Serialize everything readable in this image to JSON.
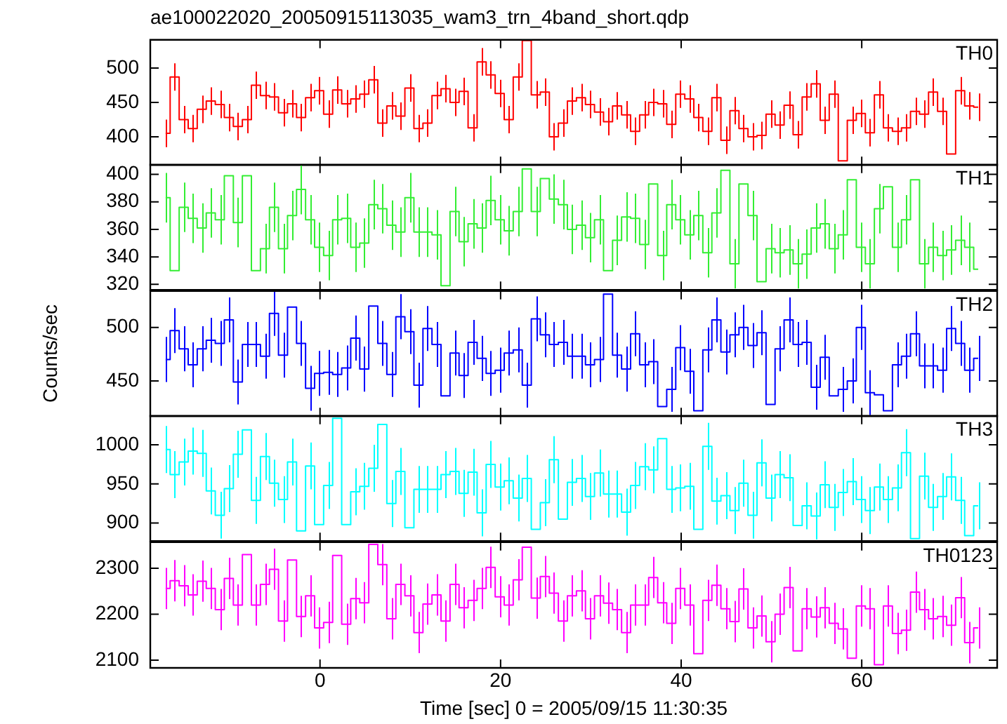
{
  "chart_data": [
    {
      "type": "step",
      "title": "ae100022020_20050915113035_wam3_trn_4band_short.qdp",
      "tick_labels": "y",
      "legend": false,
      "marker": "none",
      "x": [
        -17.1,
        -16.1,
        -15.1,
        -14.1,
        -13.1,
        -12.1,
        -11.1,
        -10.1,
        -9.1,
        -8.1,
        -7.1,
        -6.1,
        -5.1,
        -4.1,
        -3.1,
        -2.1,
        -1.1,
        -0.1,
        0.9,
        1.9,
        2.9,
        3.9,
        4.9,
        5.9,
        6.9,
        7.9,
        8.9,
        9.9,
        10.9,
        11.9,
        12.9,
        13.9,
        14.9,
        15.9,
        16.9,
        17.9,
        18.9,
        19.9,
        20.9,
        21.9,
        22.9,
        23.9,
        24.9,
        25.9,
        26.9,
        27.9,
        28.9,
        29.9,
        30.9,
        31.9,
        32.9,
        33.9,
        34.9,
        35.9,
        36.9,
        37.9,
        38.9,
        39.9,
        40.9,
        41.9,
        42.9,
        43.9,
        44.9,
        45.9,
        46.9,
        47.9,
        48.9,
        49.9,
        50.9,
        51.9,
        52.9,
        53.9,
        54.9,
        55.9,
        56.9,
        57.9,
        58.9,
        59.9,
        60.9,
        61.9,
        62.9,
        63.9,
        64.9,
        65.9,
        66.9,
        67.9,
        68.9,
        69.9,
        70.9,
        71.9,
        72.9
      ],
      "xlim": [
        -18.8,
        75
      ],
      "xticks": [
        0,
        20,
        40,
        60
      ],
      "ylim": [
        359,
        541
      ],
      "yticks": [
        400,
        450,
        500
      ],
      "series": [
        {
          "name": "TH0",
          "color": "#ff0000",
          "values": [
            405,
            487,
            425,
            412,
            440,
            452,
            447,
            428,
            415,
            425,
            475,
            460,
            458,
            435,
            448,
            428,
            457,
            467,
            433,
            468,
            448,
            455,
            462,
            483,
            420,
            445,
            430,
            471,
            412,
            420,
            460,
            470,
            450,
            466,
            413,
            509,
            490,
            463,
            425,
            487,
            540,
            461,
            465,
            400,
            420,
            452,
            457,
            447,
            436,
            422,
            445,
            432,
            408,
            432,
            450,
            448,
            418,
            462,
            455,
            428,
            408,
            457,
            395,
            438,
            412,
            400,
            402,
            433,
            417,
            446,
            403,
            458,
            477,
            424,
            462,
            365,
            424,
            434,
            406,
            461,
            413,
            408,
            413,
            437,
            433,
            465,
            437,
            375,
            467,
            445,
            443
          ],
          "errors": [
            20,
            20,
            20,
            20,
            20,
            20,
            20,
            20,
            20,
            20,
            20,
            20,
            20,
            20,
            20,
            20,
            20,
            20,
            20,
            20,
            20,
            20,
            20,
            20,
            20,
            20,
            20,
            20,
            20,
            20,
            20,
            20,
            20,
            20,
            20,
            20,
            20,
            20,
            20,
            20,
            null,
            20,
            20,
            20,
            20,
            20,
            20,
            20,
            20,
            20,
            20,
            20,
            20,
            20,
            20,
            20,
            20,
            20,
            20,
            20,
            20,
            20,
            20,
            20,
            20,
            20,
            20,
            20,
            20,
            20,
            20,
            20,
            20,
            20,
            20,
            null,
            20,
            20,
            20,
            20,
            20,
            20,
            20,
            20,
            20,
            20,
            20,
            null,
            20,
            20,
            20
          ]
        }
      ]
    },
    {
      "type": "step",
      "tick_labels": "y",
      "marker": "none",
      "x": [
        -17.1,
        -16.1,
        -15.1,
        -14.1,
        -13.1,
        -12.1,
        -11.1,
        -10.1,
        -9.1,
        -8.1,
        -7.1,
        -6.1,
        -5.1,
        -4.1,
        -3.1,
        -2.1,
        -1.1,
        -0.1,
        0.9,
        1.9,
        2.9,
        3.9,
        4.9,
        5.9,
        6.9,
        7.9,
        8.9,
        9.9,
        10.9,
        11.9,
        12.9,
        13.9,
        14.9,
        15.9,
        16.9,
        17.9,
        18.9,
        19.9,
        20.9,
        21.9,
        22.9,
        23.9,
        24.9,
        25.9,
        26.9,
        27.9,
        28.9,
        29.9,
        30.9,
        31.9,
        32.9,
        33.9,
        34.9,
        35.9,
        36.9,
        37.9,
        38.9,
        39.9,
        40.9,
        41.9,
        42.9,
        43.9,
        44.9,
        45.9,
        46.9,
        47.9,
        48.9,
        49.9,
        50.9,
        51.9,
        52.9,
        53.9,
        54.9,
        55.9,
        56.9,
        57.9,
        58.9,
        59.9,
        60.9,
        61.9,
        62.9,
        63.9,
        64.9,
        65.9,
        66.9,
        67.9,
        68.9,
        69.9,
        70.9,
        71.9,
        72.9
      ],
      "xlim": [
        -18.8,
        75
      ],
      "xticks": [
        0,
        20,
        40,
        60
      ],
      "ylim": [
        316,
        407
      ],
      "yticks": [
        320,
        340,
        360,
        380,
        400
      ],
      "series": [
        {
          "name": "TH1",
          "color": "#33ee33",
          "values": [
            383,
            330,
            376,
            368,
            361,
            372,
            367,
            399,
            365,
            399,
            330,
            346,
            376,
            346,
            370,
            389,
            367,
            347,
            341,
            367,
            368,
            347,
            350,
            378,
            375,
            363,
            358,
            383,
            358,
            358,
            356,
            319,
            373,
            351,
            364,
            361,
            381,
            367,
            359,
            373,
            404,
            373,
            397,
            382,
            378,
            360,
            363,
            354,
            367,
            330,
            352,
            369,
            368,
            349,
            393,
            341,
            378,
            367,
            356,
            370,
            343,
            372,
            403,
            335,
            393,
            370,
            322,
            346,
            343,
            345,
            335,
            342,
            361,
            364,
            346,
            356,
            396,
            347,
            335,
            375,
            391,
            347,
            367,
            396,
            335,
            347,
            341,
            345,
            352,
            347,
            331
          ],
          "errors": [
            18,
            null,
            18,
            18,
            18,
            18,
            18,
            null,
            18,
            null,
            null,
            18,
            18,
            18,
            18,
            18,
            18,
            18,
            18,
            18,
            18,
            18,
            18,
            18,
            18,
            18,
            18,
            18,
            18,
            18,
            18,
            null,
            18,
            18,
            18,
            18,
            18,
            18,
            18,
            18,
            null,
            18,
            null,
            18,
            18,
            18,
            18,
            18,
            18,
            null,
            18,
            18,
            18,
            18,
            null,
            18,
            18,
            18,
            18,
            18,
            18,
            18,
            null,
            18,
            null,
            18,
            null,
            18,
            18,
            18,
            18,
            18,
            18,
            18,
            18,
            18,
            null,
            18,
            18,
            18,
            null,
            18,
            18,
            null,
            18,
            18,
            18,
            18,
            18,
            18,
            null
          ]
        }
      ]
    },
    {
      "type": "step",
      "ylabel": "Counts/sec",
      "tick_labels": "y",
      "legend": false,
      "marker": "none",
      "x": [
        -17.1,
        -16.1,
        -15.1,
        -14.1,
        -13.1,
        -12.1,
        -11.1,
        -10.1,
        -9.1,
        -8.1,
        -7.1,
        -6.1,
        -5.1,
        -4.1,
        -3.1,
        -2.1,
        -1.1,
        -0.1,
        0.9,
        1.9,
        2.9,
        3.9,
        4.9,
        5.9,
        6.9,
        7.9,
        8.9,
        9.9,
        10.9,
        11.9,
        12.9,
        13.9,
        14.9,
        15.9,
        16.9,
        17.9,
        18.9,
        19.9,
        20.9,
        21.9,
        22.9,
        23.9,
        24.9,
        25.9,
        26.9,
        27.9,
        28.9,
        29.9,
        30.9,
        31.9,
        32.9,
        33.9,
        34.9,
        35.9,
        36.9,
        37.9,
        38.9,
        39.9,
        40.9,
        41.9,
        42.9,
        43.9,
        44.9,
        45.9,
        46.9,
        47.9,
        48.9,
        49.9,
        50.9,
        51.9,
        52.9,
        53.9,
        54.9,
        55.9,
        56.9,
        57.9,
        58.9,
        59.9,
        60.9,
        61.9,
        62.9,
        63.9,
        64.9,
        65.9,
        66.9,
        67.9,
        68.9,
        69.9,
        70.9,
        71.9,
        72.9
      ],
      "xlim": [
        -18.8,
        75
      ],
      "xticks": [
        0,
        20,
        40,
        60
      ],
      "ylim": [
        417,
        534
      ],
      "yticks": [
        450,
        500
      ],
      "series": [
        {
          "name": "TH2",
          "color": "#0000ff",
          "values": [
            470,
            497,
            480,
            465,
            480,
            488,
            485,
            507,
            449,
            484,
            484,
            473,
            513,
            474,
            519,
            485,
            443,
            457,
            458,
            456,
            462,
            490,
            461,
            520,
            485,
            456,
            510,
            496,
            446,
            499,
            484,
            436,
            476,
            455,
            486,
            471,
            457,
            460,
            476,
            479,
            446,
            508,
            493,
            484,
            486,
            473,
            473,
            465,
            470,
            531,
            474,
            461,
            494,
            465,
            468,
            426,
            442,
            481,
            459,
            422,
            479,
            507,
            477,
            493,
            500,
            483,
            495,
            428,
            480,
            507,
            484,
            486,
            444,
            472,
            436,
            442,
            450,
            500,
            439,
            437,
            422,
            465,
            473,
            494,
            464,
            464,
            460,
            499,
            485,
            460,
            471
          ],
          "errors": [
            21,
            21,
            21,
            21,
            21,
            21,
            21,
            21,
            21,
            21,
            21,
            21,
            21,
            21,
            null,
            21,
            21,
            21,
            21,
            21,
            21,
            21,
            21,
            null,
            21,
            21,
            21,
            21,
            21,
            21,
            21,
            null,
            21,
            21,
            21,
            21,
            21,
            21,
            21,
            21,
            21,
            21,
            21,
            21,
            21,
            21,
            21,
            21,
            21,
            null,
            21,
            21,
            21,
            21,
            21,
            null,
            21,
            21,
            21,
            null,
            21,
            21,
            21,
            21,
            21,
            21,
            21,
            null,
            21,
            21,
            21,
            21,
            21,
            21,
            null,
            21,
            21,
            21,
            21,
            null,
            null,
            21,
            21,
            21,
            21,
            21,
            21,
            21,
            21,
            21,
            21
          ]
        }
      ]
    },
    {
      "type": "step",
      "tick_labels": "y",
      "legend": false,
      "marker": "none",
      "x": [
        -17.1,
        -16.1,
        -15.1,
        -14.1,
        -13.1,
        -12.1,
        -11.1,
        -10.1,
        -9.1,
        -8.1,
        -7.1,
        -6.1,
        -5.1,
        -4.1,
        -3.1,
        -2.1,
        -1.1,
        -0.1,
        0.9,
        1.9,
        2.9,
        3.9,
        4.9,
        5.9,
        6.9,
        7.9,
        8.9,
        9.9,
        10.9,
        11.9,
        12.9,
        13.9,
        14.9,
        15.9,
        16.9,
        17.9,
        18.9,
        19.9,
        20.9,
        21.9,
        22.9,
        23.9,
        24.9,
        25.9,
        26.9,
        27.9,
        28.9,
        29.9,
        30.9,
        31.9,
        32.9,
        33.9,
        34.9,
        35.9,
        36.9,
        37.9,
        38.9,
        39.9,
        40.9,
        41.9,
        42.9,
        43.9,
        44.9,
        45.9,
        46.9,
        47.9,
        48.9,
        49.9,
        50.9,
        51.9,
        52.9,
        53.9,
        54.9,
        55.9,
        56.9,
        57.9,
        58.9,
        59.9,
        60.9,
        61.9,
        62.9,
        63.9,
        64.9,
        65.9,
        66.9,
        67.9,
        68.9,
        69.9,
        70.9,
        71.9,
        72.9
      ],
      "xlim": [
        -18.8,
        75
      ],
      "xticks": [
        0,
        20,
        40,
        60
      ],
      "ylim": [
        877,
        1037
      ],
      "yticks": [
        900,
        950,
        1000
      ],
      "series": [
        {
          "name": "TH3",
          "color": "#00ffff",
          "values": [
            994,
            962,
            978,
            992,
            989,
            941,
            910,
            944,
            988,
            1019,
            929,
            985,
            951,
            930,
            978,
            890,
            973,
            898,
            948,
            1034,
            898,
            940,
            947,
            970,
            1026,
            925,
            966,
            894,
            943,
            943,
            943,
            962,
            966,
            938,
            965,
            913,
            975,
            946,
            954,
            932,
            957,
            892,
            926,
            981,
            905,
            952,
            957,
            934,
            964,
            937,
            937,
            914,
            948,
            972,
            968,
            1008,
            943,
            945,
            947,
            892,
            998,
            928,
            935,
            916,
            951,
            910,
            977,
            932,
            962,
            958,
            897,
            922,
            909,
            949,
            920,
            939,
            953,
            930,
            916,
            946,
            930,
            945,
            990,
            880,
            960,
            920,
            934,
            959,
            929,
            884,
            922
          ],
          "errors": [
            30,
            30,
            30,
            30,
            30,
            30,
            30,
            30,
            30,
            null,
            30,
            30,
            30,
            30,
            30,
            null,
            30,
            null,
            30,
            null,
            null,
            30,
            30,
            30,
            null,
            30,
            30,
            null,
            30,
            30,
            30,
            30,
            30,
            30,
            30,
            30,
            30,
            30,
            30,
            30,
            30,
            null,
            30,
            30,
            null,
            30,
            30,
            30,
            30,
            30,
            30,
            30,
            30,
            30,
            30,
            null,
            30,
            30,
            30,
            null,
            30,
            30,
            30,
            30,
            30,
            30,
            30,
            30,
            30,
            30,
            null,
            30,
            30,
            30,
            30,
            30,
            30,
            30,
            30,
            30,
            30,
            30,
            30,
            null,
            30,
            30,
            30,
            30,
            30,
            null,
            30
          ]
        }
      ]
    },
    {
      "type": "step",
      "xlabel": "Time [sec] 0 = 2005/09/15 11:30:35",
      "legend": false,
      "marker": "none",
      "x": [
        -17.1,
        -16.1,
        -15.1,
        -14.1,
        -13.1,
        -12.1,
        -11.1,
        -10.1,
        -9.1,
        -8.1,
        -7.1,
        -6.1,
        -5.1,
        -4.1,
        -3.1,
        -2.1,
        -1.1,
        -0.1,
        0.9,
        1.9,
        2.9,
        3.9,
        4.9,
        5.9,
        6.9,
        7.9,
        8.9,
        9.9,
        10.9,
        11.9,
        12.9,
        13.9,
        14.9,
        15.9,
        16.9,
        17.9,
        18.9,
        19.9,
        20.9,
        21.9,
        22.9,
        23.9,
        24.9,
        25.9,
        26.9,
        27.9,
        28.9,
        29.9,
        30.9,
        31.9,
        32.9,
        33.9,
        34.9,
        35.9,
        36.9,
        37.9,
        38.9,
        39.9,
        40.9,
        41.9,
        42.9,
        43.9,
        44.9,
        45.9,
        46.9,
        47.9,
        48.9,
        49.9,
        50.9,
        51.9,
        52.9,
        53.9,
        54.9,
        55.9,
        56.9,
        57.9,
        58.9,
        59.9,
        60.9,
        61.9,
        62.9,
        63.9,
        64.9,
        65.9,
        66.9,
        67.9,
        68.9,
        69.9,
        70.9,
        71.9,
        72.9
      ],
      "xlim": [
        -18.8,
        75
      ],
      "xticks": [
        0,
        20,
        40,
        60
      ],
      "ylim": [
        2083,
        2357
      ],
      "yticks": [
        2100,
        2200,
        2300
      ],
      "series": [
        {
          "name": "TH0123",
          "color": "#ff00ff",
          "values": [
            2256,
            2273,
            2262,
            2242,
            2272,
            2256,
            2210,
            2278,
            2220,
            2330,
            2220,
            2265,
            2298,
            2185,
            2318,
            2195,
            2240,
            2170,
            2182,
            2328,
            2178,
            2234,
            2225,
            2352,
            2308,
            2190,
            2265,
            2240,
            2160,
            2222,
            2242,
            2185,
            2265,
            2214,
            2230,
            2256,
            2302,
            2238,
            2220,
            2275,
            2346,
            2235,
            2282,
            2246,
            2185,
            2240,
            2251,
            2190,
            2240,
            2224,
            2210,
            2160,
            2220,
            2220,
            2280,
            2225,
            2180,
            2256,
            2220,
            2114,
            2230,
            2263,
            2212,
            2184,
            2255,
            2170,
            2196,
            2140,
            2200,
            2258,
            2120,
            2212,
            2194,
            2214,
            2180,
            2168,
            2104,
            2218,
            2212,
            2090,
            2218,
            2158,
            2165,
            2248,
            2210,
            2190,
            2195,
            2176,
            2236,
            2138,
            2170
          ],
          "errors": [
            45,
            45,
            45,
            45,
            45,
            45,
            45,
            45,
            45,
            null,
            45,
            45,
            45,
            45,
            null,
            45,
            45,
            45,
            45,
            null,
            45,
            45,
            45,
            null,
            45,
            45,
            45,
            45,
            45,
            45,
            45,
            45,
            45,
            45,
            45,
            45,
            45,
            45,
            45,
            45,
            null,
            45,
            45,
            45,
            45,
            45,
            45,
            45,
            45,
            45,
            45,
            45,
            45,
            45,
            45,
            45,
            45,
            45,
            45,
            null,
            45,
            45,
            45,
            45,
            45,
            45,
            45,
            45,
            45,
            45,
            null,
            45,
            45,
            45,
            45,
            45,
            null,
            45,
            45,
            null,
            45,
            45,
            45,
            45,
            45,
            45,
            45,
            45,
            45,
            45,
            45
          ]
        }
      ]
    }
  ]
}
